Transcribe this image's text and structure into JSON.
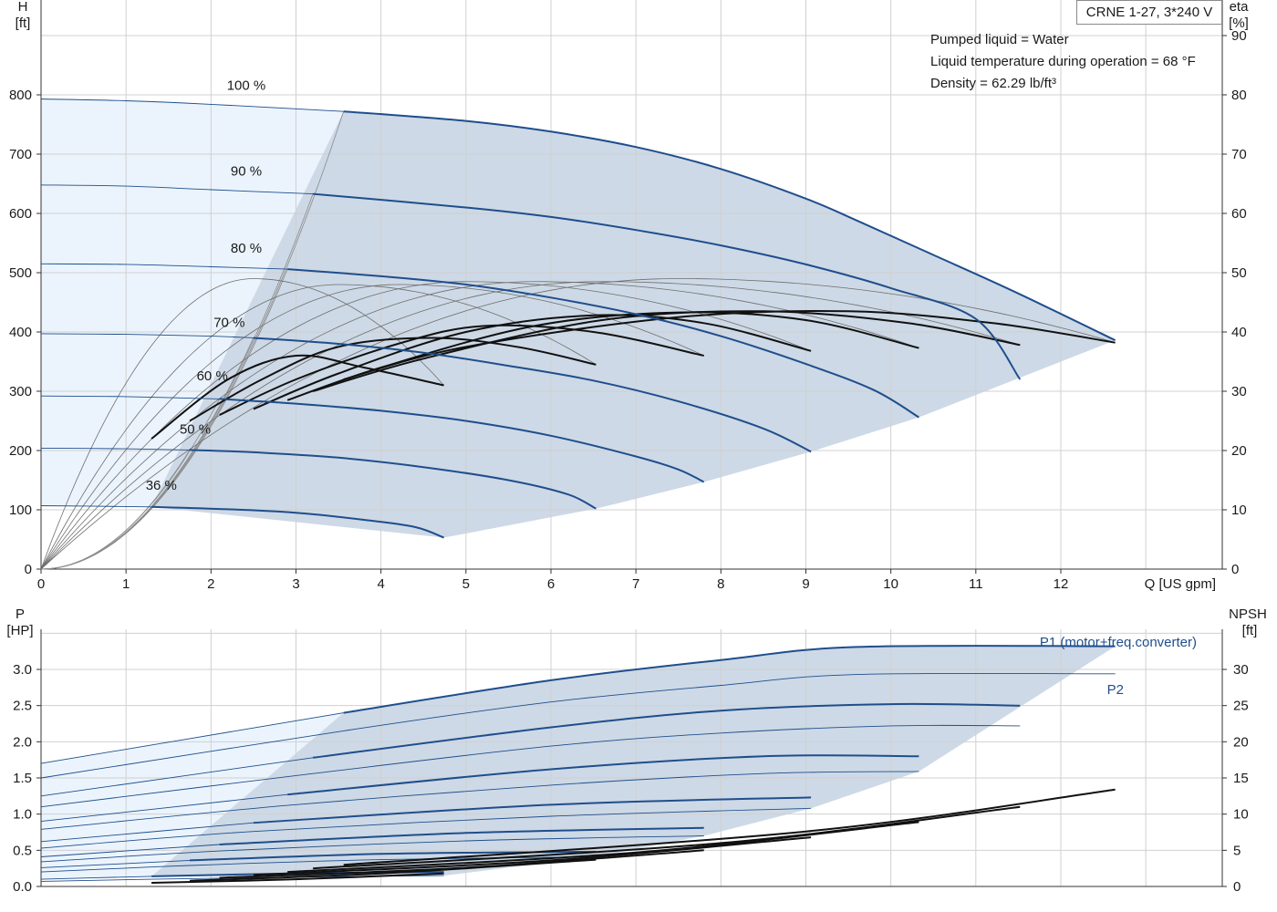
{
  "model": "CRNE 1-27, 3*240 V",
  "conditions": [
    "Pumped liquid = Water",
    "Liquid temperature during operation = 68 °F",
    "Density = 62.29 lb/ft³"
  ],
  "colors": {
    "curve_blue": "#1f4e8c",
    "region_dark": "#cdd9e6",
    "region_light": "#ebf4fd",
    "grid": "#d0d0d0"
  },
  "chart_data": [
    {
      "type": "line",
      "name": "head",
      "xlabel": "Q [US gpm]",
      "ylabel": [
        "H",
        "[ft]"
      ],
      "y2label": [
        "eta",
        "[%]"
      ],
      "xlim": [
        0,
        13.9
      ],
      "ylim": [
        0,
        960
      ],
      "y2lim": [
        0,
        96
      ],
      "x_ticks": [
        0,
        1,
        2,
        3,
        4,
        5,
        6,
        7,
        8,
        9,
        10,
        11,
        12
      ],
      "y_ticks": [
        0,
        100,
        200,
        300,
        400,
        500,
        600,
        700,
        800
      ],
      "y2_ticks": [
        0,
        10,
        20,
        30,
        40,
        50,
        60,
        70,
        80,
        90
      ],
      "grid": true,
      "speed_labels": [
        "100 %",
        "90 %",
        "80 %",
        "70 %",
        "60 %",
        "50 %",
        "36 %"
      ],
      "speed_label_at": [
        [
          2.2,
          815
        ],
        [
          2.2,
          670
        ],
        [
          2.2,
          540
        ],
        [
          2.0,
          415
        ],
        [
          1.8,
          325
        ],
        [
          1.6,
          235
        ],
        [
          1.2,
          140
        ]
      ],
      "speed_curves": [
        {
          "name": "100 %",
          "x0": 0,
          "points": [
            [
              0,
              793
            ],
            [
              1,
              790
            ],
            [
              2,
              784
            ],
            [
              3.56,
              772
            ],
            [
              5,
              756
            ],
            [
              6,
              738
            ],
            [
              7,
              712
            ],
            [
              8,
              675
            ],
            [
              9,
              625
            ],
            [
              9.6,
              588
            ],
            [
              10.5,
              530
            ],
            [
              11.5,
              465
            ],
            [
              12.64,
              386
            ]
          ]
        },
        {
          "name": "90 %",
          "x0": 0,
          "points": [
            [
              0,
              648
            ],
            [
              1,
              646
            ],
            [
              2,
              640
            ],
            [
              3.2,
              633
            ],
            [
              5,
              610
            ],
            [
              6,
              594
            ],
            [
              7,
              572
            ],
            [
              8,
              546
            ],
            [
              9,
              514
            ],
            [
              10,
              474
            ],
            [
              11,
              422
            ],
            [
              11.52,
              320
            ]
          ]
        },
        {
          "name": "80 %",
          "x0": 0,
          "points": [
            [
              0,
              515
            ],
            [
              1,
              514
            ],
            [
              2,
              510
            ],
            [
              2.9,
              506
            ],
            [
              4,
              494
            ],
            [
              5,
              480
            ],
            [
              6,
              458
            ],
            [
              7,
              430
            ],
            [
              8,
              393
            ],
            [
              9,
              346
            ],
            [
              9.8,
              302
            ],
            [
              10.33,
              256
            ]
          ]
        },
        {
          "name": "70 %",
          "x0": 0,
          "points": [
            [
              0,
              397
            ],
            [
              1,
              396
            ],
            [
              2,
              393
            ],
            [
              2.5,
              390
            ],
            [
              3.5,
              380
            ],
            [
              4.5,
              365
            ],
            [
              5.5,
              343
            ],
            [
              6.5,
              318
            ],
            [
              7.5,
              283
            ],
            [
              8.5,
              237
            ],
            [
              9.06,
              198
            ]
          ]
        },
        {
          "name": "60 %",
          "x0": 0,
          "points": [
            [
              0,
              292
            ],
            [
              1,
              291
            ],
            [
              2.1,
              287
            ],
            [
              3,
              279
            ],
            [
              4,
              267
            ],
            [
              5,
              250
            ],
            [
              6,
              225
            ],
            [
              7,
              190
            ],
            [
              7.5,
              168
            ],
            [
              7.8,
              147
            ]
          ]
        },
        {
          "name": "50 %",
          "x0": 0,
          "points": [
            [
              0,
              204
            ],
            [
              1,
              203
            ],
            [
              1.75,
              201
            ],
            [
              2.5,
              197
            ],
            [
              3.5,
              188
            ],
            [
              4.5,
              172
            ],
            [
              5.5,
              150
            ],
            [
              6.2,
              126
            ],
            [
              6.53,
              102
            ]
          ]
        },
        {
          "name": "36 %",
          "x0": 0,
          "points": [
            [
              0,
              107
            ],
            [
              1.3,
              105
            ],
            [
              2.2,
              101
            ],
            [
              3,
              95
            ],
            [
              3.8,
              83
            ],
            [
              4.4,
              71
            ],
            [
              4.74,
              53
            ]
          ]
        }
      ],
      "operating_region": [
        [
          1.3,
          105
        ],
        [
          3.56,
          772
        ],
        [
          9.6,
          588
        ],
        [
          12.64,
          386
        ],
        [
          4.74,
          53
        ]
      ],
      "efficiency_curves": [
        {
          "peak": [
            2.5,
            49
          ],
          "end": [
            4.74,
            31
          ]
        },
        {
          "peak": [
            3.5,
            48
          ],
          "end": [
            6.53,
            34.5
          ]
        },
        {
          "peak": [
            4.2,
            48
          ],
          "end": [
            7.8,
            36
          ]
        },
        {
          "peak": [
            5,
            48.5
          ],
          "end": [
            9.06,
            36.8
          ]
        },
        {
          "peak": [
            5.8,
            48.5
          ],
          "end": [
            10.33,
            37.3
          ]
        },
        {
          "peak": [
            6.6,
            48.5
          ],
          "end": [
            11.52,
            37.8
          ]
        },
        {
          "peak": [
            7.5,
            49
          ],
          "end": [
            12.64,
            38.2
          ]
        }
      ]
    },
    {
      "type": "line",
      "name": "power",
      "ylabel": [
        "P",
        "[HP]"
      ],
      "y2label": [
        "NPSH",
        "[ft]"
      ],
      "xlim": [
        0,
        13.9
      ],
      "ylim": [
        0,
        3.5
      ],
      "y2lim": [
        0,
        35
      ],
      "y_ticks": [
        "0.0",
        "0.5",
        "1.0",
        "1.5",
        "2.0",
        "2.5",
        "3.0"
      ],
      "y2_ticks": [
        0,
        5,
        10,
        15,
        20,
        25,
        30
      ],
      "grid": true,
      "series_labels": [
        "P1 (motor+freq.converter)",
        "P2"
      ],
      "p1_curves": [
        {
          "speed": "100 %",
          "points": [
            [
              0,
              1.7
            ],
            [
              3.56,
              2.4
            ],
            [
              6,
              2.85
            ],
            [
              8,
              3.13
            ],
            [
              9.6,
              3.31
            ],
            [
              12.64,
              3.32
            ]
          ]
        },
        {
          "speed": "90 %",
          "points": [
            [
              0,
              1.25
            ],
            [
              3.2,
              1.78
            ],
            [
              6,
              2.2
            ],
            [
              8,
              2.43
            ],
            [
              10,
              2.52
            ],
            [
              11.52,
              2.5
            ]
          ]
        },
        {
          "speed": "80 %",
          "points": [
            [
              0,
              0.9
            ],
            [
              2.9,
              1.27
            ],
            [
              6,
              1.62
            ],
            [
              8.5,
              1.8
            ],
            [
              10.33,
              1.8
            ]
          ]
        },
        {
          "speed": "70 %",
          "points": [
            [
              0,
              0.62
            ],
            [
              2.5,
              0.88
            ],
            [
              6,
              1.13
            ],
            [
              9.06,
              1.23
            ]
          ]
        },
        {
          "speed": "60 %",
          "points": [
            [
              0,
              0.41
            ],
            [
              2.1,
              0.58
            ],
            [
              5,
              0.74
            ],
            [
              7.8,
              0.81
            ]
          ]
        },
        {
          "speed": "50 %",
          "points": [
            [
              0,
              0.26
            ],
            [
              1.75,
              0.36
            ],
            [
              4,
              0.45
            ],
            [
              6.53,
              0.48
            ]
          ]
        },
        {
          "speed": "36 %",
          "points": [
            [
              0,
              0.1
            ],
            [
              1.3,
              0.14
            ],
            [
              3,
              0.18
            ],
            [
              4.74,
              0.2
            ]
          ]
        }
      ],
      "p2_curves": [
        {
          "speed": "100 %",
          "points": [
            [
              0,
              1.5
            ],
            [
              3.56,
              2.15
            ],
            [
              6,
              2.55
            ],
            [
              8,
              2.78
            ],
            [
              9.6,
              2.93
            ],
            [
              12.64,
              2.94
            ]
          ]
        },
        {
          "speed": "90 %",
          "points": [
            [
              0,
              1.1
            ],
            [
              3.2,
              1.56
            ],
            [
              6,
              1.94
            ],
            [
              8,
              2.12
            ],
            [
              10,
              2.22
            ],
            [
              11.52,
              2.22
            ]
          ]
        },
        {
          "speed": "80 %",
          "points": [
            [
              0,
              0.79
            ],
            [
              2.9,
              1.12
            ],
            [
              6,
              1.4
            ],
            [
              8.5,
              1.56
            ],
            [
              10.33,
              1.59
            ]
          ]
        },
        {
          "speed": "70 %",
          "points": [
            [
              0,
              0.53
            ],
            [
              2.5,
              0.76
            ],
            [
              6,
              0.97
            ],
            [
              9.06,
              1.08
            ]
          ]
        },
        {
          "speed": "60 %",
          "points": [
            [
              0,
              0.34
            ],
            [
              2.1,
              0.49
            ],
            [
              5,
              0.63
            ],
            [
              7.8,
              0.7
            ]
          ]
        },
        {
          "speed": "50 %",
          "points": [
            [
              0,
              0.2
            ],
            [
              1.75,
              0.29
            ],
            [
              4,
              0.37
            ],
            [
              6.53,
              0.41
            ]
          ]
        },
        {
          "speed": "36 %",
          "points": [
            [
              0,
              0.07
            ],
            [
              1.3,
              0.1
            ],
            [
              3,
              0.13
            ],
            [
              4.74,
              0.15
            ]
          ]
        }
      ],
      "npsh_curves": [
        {
          "points": [
            [
              1.3,
              0.5
            ],
            [
              3,
              1.0
            ],
            [
              4.74,
              1.8
            ]
          ]
        },
        {
          "points": [
            [
              1.75,
              0.8
            ],
            [
              4,
              1.8
            ],
            [
              6.53,
              3.7
            ]
          ]
        },
        {
          "points": [
            [
              2.1,
              1.2
            ],
            [
              5,
              2.6
            ],
            [
              7.8,
              5.0
            ]
          ]
        },
        {
          "points": [
            [
              2.5,
              1.6
            ],
            [
              6,
              3.6
            ],
            [
              9.06,
              6.8
            ]
          ]
        },
        {
          "points": [
            [
              2.9,
              2.0
            ],
            [
              7,
              4.7
            ],
            [
              10.33,
              8.9
            ]
          ]
        },
        {
          "points": [
            [
              3.2,
              2.5
            ],
            [
              8,
              6.0
            ],
            [
              11.52,
              11.0
            ]
          ]
        },
        {
          "points": [
            [
              3.56,
              3.0
            ],
            [
              9,
              7.6
            ],
            [
              12.64,
              13.4
            ]
          ]
        }
      ],
      "operating_region": [
        [
          1.3,
          0.14
        ],
        [
          3.56,
          2.4
        ],
        [
          9.6,
          3.31
        ],
        [
          12.64,
          3.32
        ],
        [
          10.33,
          1.59
        ],
        [
          6.53,
          0.41
        ],
        [
          4.74,
          0.15
        ]
      ]
    }
  ]
}
